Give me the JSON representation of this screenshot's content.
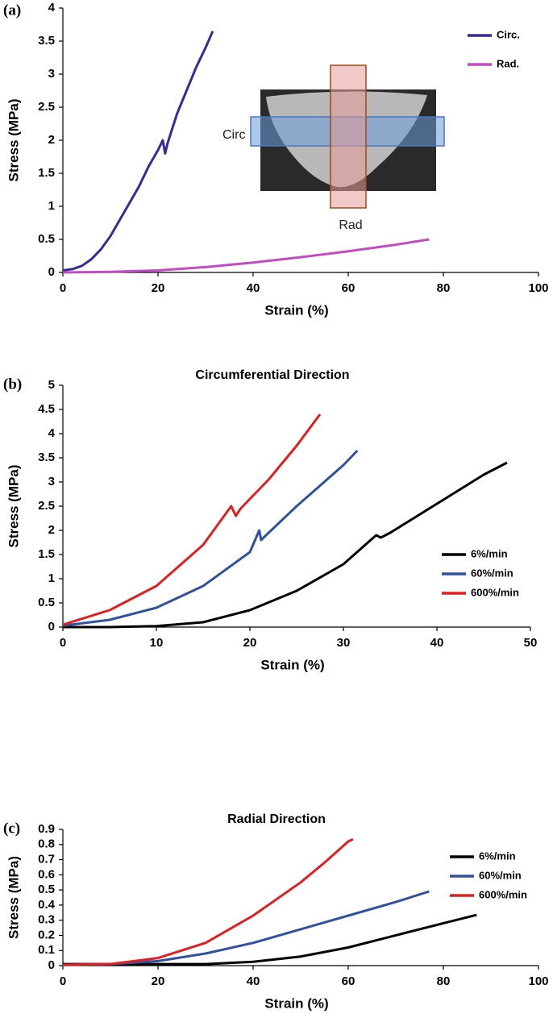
{
  "chart_data": [
    {
      "type": "line",
      "panel_label": "(a)",
      "x_label": "Strain (%)",
      "y_label": "Stress (MPa)",
      "xlim": [
        0,
        100
      ],
      "xticks": [
        0,
        20,
        40,
        60,
        80,
        100
      ],
      "ylim": [
        0,
        4
      ],
      "yticks": [
        0,
        0.5,
        1,
        1.5,
        2,
        2.5,
        3,
        3.5,
        4
      ],
      "legend": "upper right",
      "annotations": [
        "Circ",
        "Rad"
      ],
      "series": [
        {
          "name": "Circ.",
          "color": "#3b2a96",
          "x": [
            0,
            2,
            4,
            6,
            8,
            10,
            12,
            14,
            16,
            18,
            20,
            21,
            21.5,
            22,
            24,
            26,
            28,
            30,
            31.5
          ],
          "values": [
            0.03,
            0.05,
            0.1,
            0.2,
            0.35,
            0.55,
            0.8,
            1.05,
            1.3,
            1.6,
            1.85,
            2.0,
            1.8,
            1.95,
            2.4,
            2.75,
            3.1,
            3.4,
            3.65
          ]
        },
        {
          "name": "Rad.",
          "color": "#c24cc4",
          "x": [
            0,
            10,
            20,
            30,
            40,
            50,
            60,
            70,
            77
          ],
          "values": [
            0,
            0.01,
            0.03,
            0.08,
            0.15,
            0.23,
            0.32,
            0.42,
            0.5
          ]
        }
      ]
    },
    {
      "type": "line",
      "panel_label": "(b)",
      "title": "Circumferential Direction",
      "x_label": "Strain (%)",
      "y_label": "Stress (MPa)",
      "xlim": [
        0,
        50
      ],
      "xticks": [
        0,
        10,
        20,
        30,
        40,
        50
      ],
      "ylim": [
        0,
        5
      ],
      "yticks": [
        0,
        0.5,
        1,
        1.5,
        2,
        2.5,
        3,
        3.5,
        4,
        4.5,
        5
      ],
      "legend": "lower right",
      "series": [
        {
          "name": "6%/min",
          "color": "#000000",
          "x": [
            0,
            5,
            10,
            15,
            20,
            25,
            30,
            33.5,
            34,
            35,
            40,
            45,
            47.5
          ],
          "values": [
            0,
            0,
            0.02,
            0.1,
            0.35,
            0.75,
            1.3,
            1.9,
            1.85,
            1.95,
            2.55,
            3.15,
            3.4
          ]
        },
        {
          "name": "60%/min",
          "color": "#3050a0",
          "x": [
            0,
            5,
            10,
            15,
            20,
            21,
            21.2,
            22,
            25,
            30,
            31.5
          ],
          "values": [
            0.03,
            0.15,
            0.4,
            0.85,
            1.55,
            2.0,
            1.8,
            1.95,
            2.5,
            3.35,
            3.65
          ]
        },
        {
          "name": "600%/min",
          "color": "#e02020",
          "x": [
            0,
            5,
            10,
            15,
            18,
            18.5,
            19,
            22,
            25,
            27.5
          ],
          "values": [
            0.05,
            0.35,
            0.85,
            1.7,
            2.5,
            2.3,
            2.45,
            3.05,
            3.75,
            4.4
          ]
        }
      ]
    },
    {
      "type": "line",
      "panel_label": "(c)",
      "title": "Radial Direction",
      "x_label": "Strain (%)",
      "y_label": "Stress (MPa)",
      "xlim": [
        0,
        100
      ],
      "xticks": [
        0,
        20,
        40,
        60,
        80,
        100
      ],
      "ylim": [
        0,
        0.9
      ],
      "yticks": [
        0,
        0.1,
        0.2,
        0.3,
        0.4,
        0.5,
        0.6,
        0.7,
        0.8,
        0.9
      ],
      "legend": "upper right",
      "series": [
        {
          "name": "6%/min",
          "color": "#000000",
          "x": [
            0,
            20,
            30,
            40,
            50,
            60,
            70,
            80,
            87
          ],
          "values": [
            0.01,
            0.01,
            0.01,
            0.025,
            0.06,
            0.12,
            0.2,
            0.28,
            0.335
          ]
        },
        {
          "name": "60%/min",
          "color": "#3050a0",
          "x": [
            0,
            10,
            20,
            30,
            40,
            50,
            60,
            70,
            77
          ],
          "values": [
            0.005,
            0.01,
            0.03,
            0.08,
            0.15,
            0.24,
            0.33,
            0.42,
            0.49
          ]
        },
        {
          "name": "600%/min",
          "color": "#e02020",
          "x": [
            0,
            10,
            20,
            30,
            40,
            50,
            55,
            60,
            61
          ],
          "values": [
            0.005,
            0.01,
            0.05,
            0.15,
            0.33,
            0.55,
            0.68,
            0.82,
            0.835
          ]
        }
      ]
    }
  ]
}
